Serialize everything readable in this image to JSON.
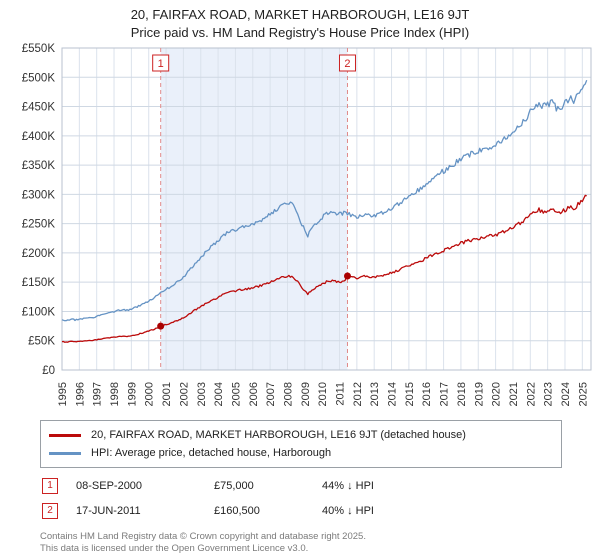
{
  "chart_data": {
    "type": "line",
    "title": "20, FAIRFAX ROAD, MARKET HARBOROUGH, LE16 9JT",
    "subtitle": "Price paid vs. HM Land Registry's House Price Index (HPI)",
    "xlim": [
      1995,
      2025.5
    ],
    "ylim": [
      0,
      550000
    ],
    "grid": true,
    "legend_position": "bottom",
    "x_ticks": [
      1995,
      1996,
      1997,
      1998,
      1999,
      2000,
      2001,
      2002,
      2003,
      2004,
      2005,
      2006,
      2007,
      2008,
      2009,
      2010,
      2011,
      2012,
      2013,
      2014,
      2015,
      2016,
      2017,
      2018,
      2019,
      2020,
      2021,
      2022,
      2023,
      2024,
      2025
    ],
    "y_ticks": [
      {
        "value": 0,
        "label": "£0"
      },
      {
        "value": 50000,
        "label": "£50K"
      },
      {
        "value": 100000,
        "label": "£100K"
      },
      {
        "value": 150000,
        "label": "£150K"
      },
      {
        "value": 200000,
        "label": "£200K"
      },
      {
        "value": 250000,
        "label": "£250K"
      },
      {
        "value": 300000,
        "label": "£300K"
      },
      {
        "value": 350000,
        "label": "£350K"
      },
      {
        "value": 400000,
        "label": "£400K"
      },
      {
        "value": 450000,
        "label": "£450K"
      },
      {
        "value": 500000,
        "label": "£500K"
      },
      {
        "value": 550000,
        "label": "£550K"
      }
    ],
    "colors": {
      "event": "#cc2222",
      "event_line": "#e08a8a",
      "shading": "#eaf0fa",
      "grid_v": "#dbe2ec",
      "grid_h": "#cfd8e3",
      "border": "#b8c2cf",
      "axis_text": "#333333",
      "marker": "#aa0000"
    },
    "shaded_region": [
      2000.69,
      2011.46
    ],
    "events": [
      {
        "n": "1",
        "x": 2000.69,
        "y": 75000,
        "date": "08-SEP-2000",
        "price": "£75,000",
        "delta": "44% ↓ HPI"
      },
      {
        "n": "2",
        "x": 2011.46,
        "y": 160500,
        "date": "17-JUN-2011",
        "price": "£160,500",
        "delta": "40% ↓ HPI"
      }
    ],
    "series": [
      {
        "name": "20, FAIRFAX ROAD, MARKET HARBOROUGH, LE16 9JT (detached house)",
        "color": "#bb0a0a",
        "points": [
          [
            1995.0,
            48500
          ],
          [
            1995.25,
            47700
          ],
          [
            1995.5,
            49100
          ],
          [
            1995.75,
            48200
          ],
          [
            1996.0,
            48800
          ],
          [
            1996.25,
            49600
          ],
          [
            1996.5,
            50800
          ],
          [
            1996.75,
            50200
          ],
          [
            1997.0,
            51900
          ],
          [
            1997.25,
            53000
          ],
          [
            1997.5,
            54100
          ],
          [
            1997.75,
            55300
          ],
          [
            1998.0,
            56400
          ],
          [
            1998.25,
            57200
          ],
          [
            1998.5,
            58100
          ],
          [
            1998.75,
            57500
          ],
          [
            1999.0,
            58700
          ],
          [
            1999.25,
            60300
          ],
          [
            1999.5,
            62000
          ],
          [
            1999.75,
            64300
          ],
          [
            2000.0,
            66600
          ],
          [
            2000.25,
            68800
          ],
          [
            2000.5,
            72200
          ],
          [
            2000.69,
            75000
          ],
          [
            2001.0,
            77800
          ],
          [
            2001.25,
            80100
          ],
          [
            2001.5,
            82900
          ],
          [
            2001.75,
            85700
          ],
          [
            2002.0,
            89100
          ],
          [
            2002.25,
            94200
          ],
          [
            2002.5,
            99300
          ],
          [
            2002.75,
            103800
          ],
          [
            2003.0,
            108300
          ],
          [
            2003.25,
            112800
          ],
          [
            2003.5,
            117300
          ],
          [
            2003.75,
            120700
          ],
          [
            2004.0,
            124100
          ],
          [
            2004.25,
            128600
          ],
          [
            2004.5,
            132000
          ],
          [
            2004.75,
            134200
          ],
          [
            2005.0,
            135400
          ],
          [
            2005.25,
            136500
          ],
          [
            2005.5,
            137600
          ],
          [
            2005.75,
            138700
          ],
          [
            2006.0,
            140400
          ],
          [
            2006.25,
            142100
          ],
          [
            2006.5,
            144400
          ],
          [
            2006.75,
            147200
          ],
          [
            2007.0,
            150000
          ],
          [
            2007.25,
            153400
          ],
          [
            2007.5,
            156200
          ],
          [
            2007.75,
            158500
          ],
          [
            2008.0,
            159600
          ],
          [
            2008.25,
            160700
          ],
          [
            2008.5,
            153400
          ],
          [
            2008.75,
            143800
          ],
          [
            2009.0,
            134200
          ],
          [
            2009.17,
            129700
          ],
          [
            2009.33,
            134200
          ],
          [
            2009.5,
            138700
          ],
          [
            2009.75,
            143300
          ],
          [
            2010.0,
            147200
          ],
          [
            2010.25,
            150600
          ],
          [
            2010.5,
            152300
          ],
          [
            2010.75,
            151200
          ],
          [
            2011.0,
            150000
          ],
          [
            2011.25,
            151100
          ],
          [
            2011.46,
            160500
          ],
          [
            2011.75,
            158700
          ],
          [
            2012.0,
            157500
          ],
          [
            2012.25,
            158700
          ],
          [
            2012.5,
            159900
          ],
          [
            2012.75,
            158100
          ],
          [
            2013.0,
            158700
          ],
          [
            2013.25,
            159900
          ],
          [
            2013.5,
            161700
          ],
          [
            2013.75,
            163500
          ],
          [
            2014.0,
            165900
          ],
          [
            2014.25,
            168900
          ],
          [
            2014.5,
            171900
          ],
          [
            2014.75,
            174900
          ],
          [
            2015.0,
            177300
          ],
          [
            2015.25,
            180300
          ],
          [
            2015.5,
            183900
          ],
          [
            2015.75,
            187500
          ],
          [
            2016.0,
            191100
          ],
          [
            2016.25,
            194700
          ],
          [
            2016.5,
            198300
          ],
          [
            2016.75,
            201400
          ],
          [
            2017.0,
            204300
          ],
          [
            2017.25,
            207300
          ],
          [
            2017.5,
            210400
          ],
          [
            2017.75,
            213400
          ],
          [
            2018.0,
            216400
          ],
          [
            2018.25,
            218800
          ],
          [
            2018.5,
            221200
          ],
          [
            2018.75,
            223000
          ],
          [
            2019.0,
            224800
          ],
          [
            2019.25,
            226600
          ],
          [
            2019.5,
            228400
          ],
          [
            2019.75,
            229600
          ],
          [
            2020.0,
            230800
          ],
          [
            2020.25,
            233200
          ],
          [
            2020.5,
            236800
          ],
          [
            2020.75,
            240400
          ],
          [
            2021.0,
            244000
          ],
          [
            2021.25,
            248200
          ],
          [
            2021.5,
            253000
          ],
          [
            2021.75,
            258400
          ],
          [
            2022.0,
            264400
          ],
          [
            2022.25,
            269300
          ],
          [
            2022.5,
            273500
          ],
          [
            2022.75,
            270500
          ],
          [
            2023.0,
            271700
          ],
          [
            2023.25,
            276500
          ],
          [
            2023.5,
            269300
          ],
          [
            2023.75,
            268100
          ],
          [
            2024.0,
            273500
          ],
          [
            2024.25,
            279500
          ],
          [
            2024.5,
            275300
          ],
          [
            2024.75,
            282500
          ],
          [
            2025.0,
            289700
          ],
          [
            2025.25,
            297500
          ]
        ]
      },
      {
        "name": "HPI: Average price, detached house, Harborough",
        "color": "#6593c4",
        "points": [
          [
            1995.0,
            86000
          ],
          [
            1995.25,
            84500
          ],
          [
            1995.5,
            87000
          ],
          [
            1995.75,
            85500
          ],
          [
            1996.0,
            86500
          ],
          [
            1996.25,
            88000
          ],
          [
            1996.5,
            90000
          ],
          [
            1996.75,
            89000
          ],
          [
            1997.0,
            92000
          ],
          [
            1997.25,
            94000
          ],
          [
            1997.5,
            96000
          ],
          [
            1997.75,
            98000
          ],
          [
            1998.0,
            100000
          ],
          [
            1998.25,
            101500
          ],
          [
            1998.5,
            103000
          ],
          [
            1998.75,
            102000
          ],
          [
            1999.0,
            104000
          ],
          [
            1999.25,
            107000
          ],
          [
            1999.5,
            110000
          ],
          [
            1999.75,
            114000
          ],
          [
            2000.0,
            118000
          ],
          [
            2000.25,
            122000
          ],
          [
            2000.5,
            128000
          ],
          [
            2000.69,
            133000
          ],
          [
            2001.0,
            138000
          ],
          [
            2001.25,
            142000
          ],
          [
            2001.5,
            147000
          ],
          [
            2001.75,
            152000
          ],
          [
            2002.0,
            158000
          ],
          [
            2002.25,
            167000
          ],
          [
            2002.5,
            176000
          ],
          [
            2002.75,
            184000
          ],
          [
            2003.0,
            192000
          ],
          [
            2003.25,
            200000
          ],
          [
            2003.5,
            208000
          ],
          [
            2003.75,
            214000
          ],
          [
            2004.0,
            220000
          ],
          [
            2004.25,
            228000
          ],
          [
            2004.5,
            234000
          ],
          [
            2004.75,
            238000
          ],
          [
            2005.0,
            240000
          ],
          [
            2005.25,
            242000
          ],
          [
            2005.5,
            244000
          ],
          [
            2005.75,
            246000
          ],
          [
            2006.0,
            249000
          ],
          [
            2006.25,
            252000
          ],
          [
            2006.5,
            256000
          ],
          [
            2006.75,
            261000
          ],
          [
            2007.0,
            266000
          ],
          [
            2007.25,
            272000
          ],
          [
            2007.5,
            277000
          ],
          [
            2007.75,
            281000
          ],
          [
            2008.0,
            283000
          ],
          [
            2008.25,
            285000
          ],
          [
            2008.5,
            272000
          ],
          [
            2008.75,
            255000
          ],
          [
            2009.0,
            238000
          ],
          [
            2009.17,
            230000
          ],
          [
            2009.33,
            238000
          ],
          [
            2009.5,
            246000
          ],
          [
            2009.75,
            254000
          ],
          [
            2010.0,
            261000
          ],
          [
            2010.25,
            267000
          ],
          [
            2010.5,
            270000
          ],
          [
            2010.75,
            268000
          ],
          [
            2011.0,
            266000
          ],
          [
            2011.25,
            268000
          ],
          [
            2011.46,
            267000
          ],
          [
            2011.75,
            264000
          ],
          [
            2012.0,
            262000
          ],
          [
            2012.25,
            264000
          ],
          [
            2012.5,
            266000
          ],
          [
            2012.75,
            263000
          ],
          [
            2013.0,
            264000
          ],
          [
            2013.25,
            266000
          ],
          [
            2013.5,
            269000
          ],
          [
            2013.75,
            272000
          ],
          [
            2014.0,
            276000
          ],
          [
            2014.25,
            281000
          ],
          [
            2014.5,
            286000
          ],
          [
            2014.75,
            291000
          ],
          [
            2015.0,
            295000
          ],
          [
            2015.25,
            300000
          ],
          [
            2015.5,
            306000
          ],
          [
            2015.75,
            312000
          ],
          [
            2016.0,
            318000
          ],
          [
            2016.25,
            324000
          ],
          [
            2016.5,
            330000
          ],
          [
            2016.75,
            335000
          ],
          [
            2017.0,
            340000
          ],
          [
            2017.25,
            345000
          ],
          [
            2017.5,
            350000
          ],
          [
            2017.75,
            355000
          ],
          [
            2018.0,
            360000
          ],
          [
            2018.25,
            364000
          ],
          [
            2018.5,
            368000
          ],
          [
            2018.75,
            371000
          ],
          [
            2019.0,
            374000
          ],
          [
            2019.25,
            377000
          ],
          [
            2019.5,
            380000
          ],
          [
            2019.75,
            382000
          ],
          [
            2020.0,
            384000
          ],
          [
            2020.25,
            388000
          ],
          [
            2020.5,
            394000
          ],
          [
            2020.75,
            400000
          ],
          [
            2021.0,
            406000
          ],
          [
            2021.25,
            413000
          ],
          [
            2021.5,
            421000
          ],
          [
            2021.75,
            430000
          ],
          [
            2022.0,
            440000
          ],
          [
            2022.25,
            448000
          ],
          [
            2022.5,
            455000
          ],
          [
            2022.75,
            450000
          ],
          [
            2023.0,
            452000
          ],
          [
            2023.25,
            460000
          ],
          [
            2023.5,
            448000
          ],
          [
            2023.75,
            446000
          ],
          [
            2024.0,
            455000
          ],
          [
            2024.25,
            465000
          ],
          [
            2024.5,
            458000
          ],
          [
            2024.75,
            470000
          ],
          [
            2025.0,
            482000
          ],
          [
            2025.25,
            495000
          ]
        ]
      }
    ]
  },
  "footer": {
    "line1": "Contains HM Land Registry data © Crown copyright and database right 2025.",
    "line2": "This data is licensed under the Open Government Licence v3.0."
  }
}
